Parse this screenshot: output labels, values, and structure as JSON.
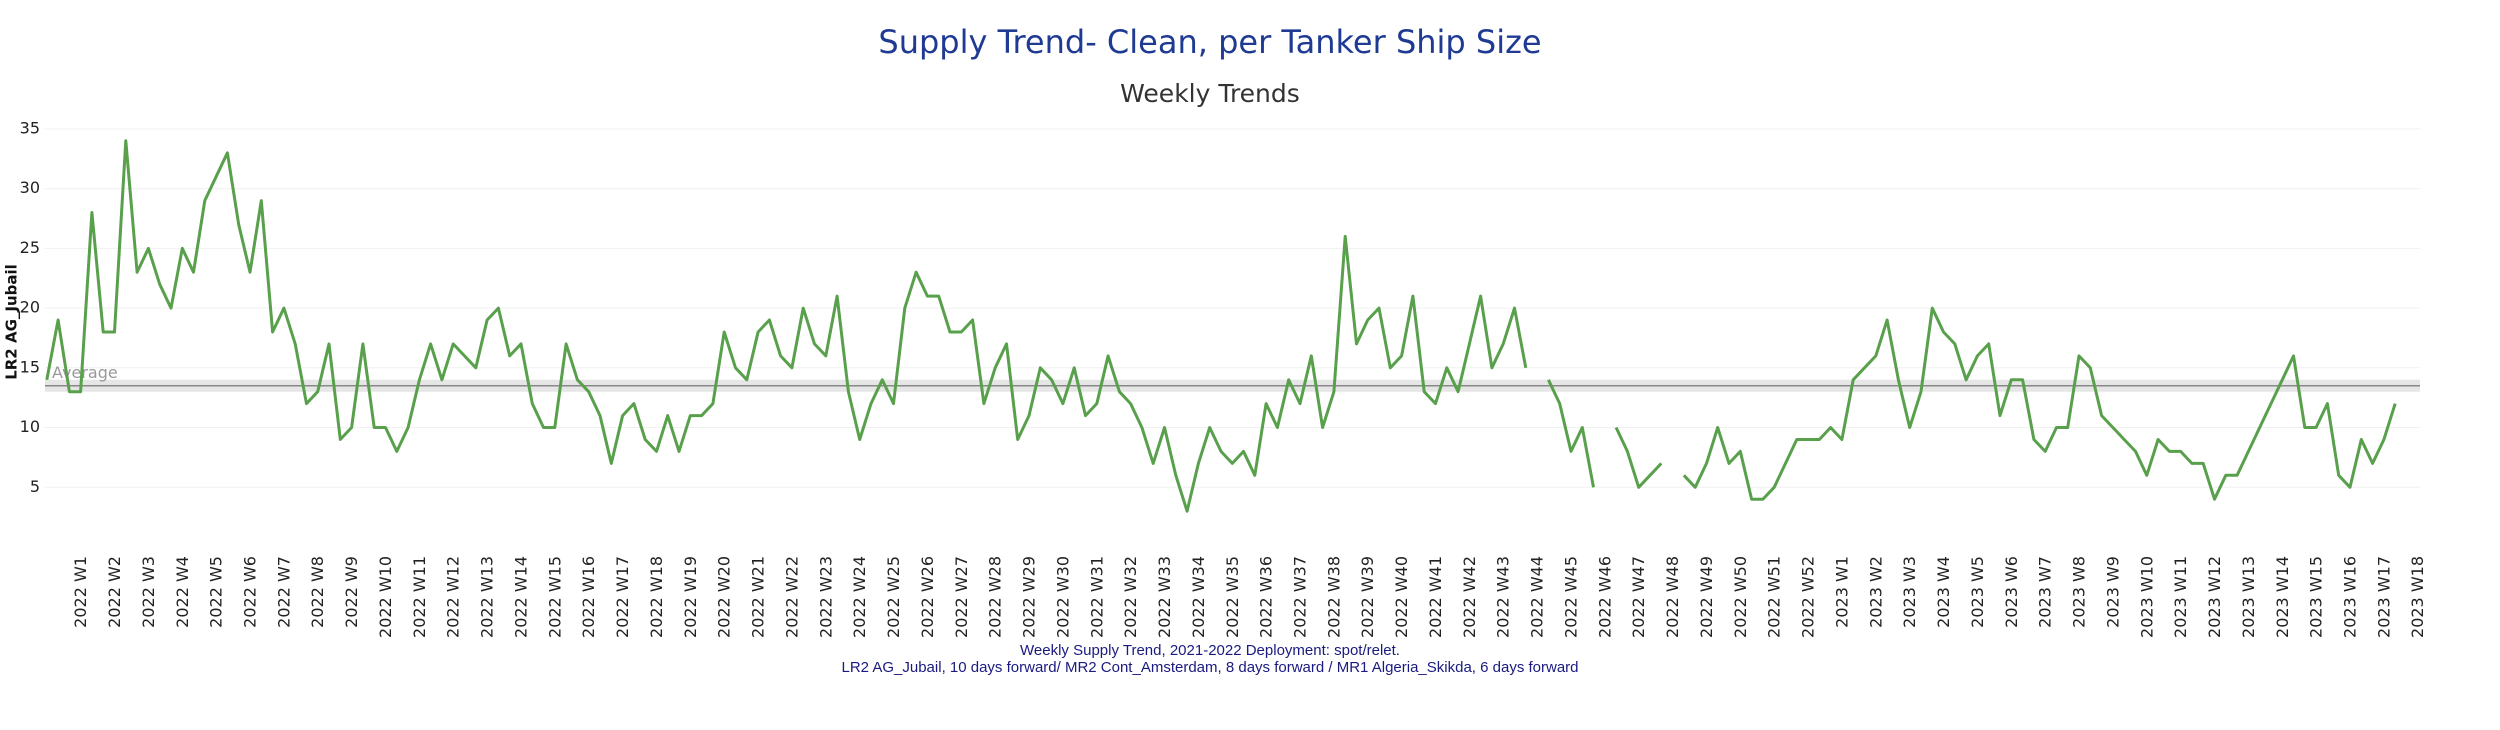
{
  "chart_data": {
    "type": "line",
    "title": "Supply Trend- Clean, per Tanker Ship Size",
    "subtitle": "Weekly Trends",
    "y_label": "LR2 AG_Jubail",
    "footnote": [
      "Weekly Supply Trend, 2021-2022 Deployment: spot/relet.",
      "LR2 AG_Jubail, 10 days forward/ MR2 Cont_Amsterdam, 8 days forward / MR1 Algeria_Skikda, 6 days forward"
    ],
    "average": {
      "label": "Average",
      "value": 13.5
    },
    "ylim": [
      0,
      37
    ],
    "yticks": [
      5,
      10,
      15,
      20,
      25,
      30,
      35
    ],
    "grid": true,
    "categories": [
      null,
      null,
      null,
      "2022 W1",
      null,
      null,
      "2022 W2",
      null,
      null,
      "2022 W3",
      null,
      null,
      "2022 W4",
      null,
      null,
      "2022 W5",
      null,
      null,
      "2022 W6",
      null,
      null,
      "2022 W7",
      null,
      null,
      "2022 W8",
      null,
      null,
      "2022 W9",
      null,
      null,
      "2022 W10",
      null,
      null,
      "2022 W11",
      null,
      null,
      "2022 W12",
      null,
      null,
      "2022 W13",
      null,
      null,
      "2022 W14",
      null,
      null,
      "2022 W15",
      null,
      null,
      "2022 W16",
      null,
      null,
      "2022 W17",
      null,
      null,
      "2022 W18",
      null,
      null,
      "2022 W19",
      null,
      null,
      "2022 W20",
      null,
      null,
      "2022 W21",
      null,
      null,
      "2022 W22",
      null,
      null,
      "2022 W23",
      null,
      null,
      "2022 W24",
      null,
      null,
      "2022 W25",
      null,
      null,
      "2022 W26",
      null,
      null,
      "2022 W27",
      null,
      null,
      "2022 W28",
      null,
      null,
      "2022 W29",
      null,
      null,
      "2022 W30",
      null,
      null,
      "2022 W31",
      null,
      null,
      "2022 W32",
      null,
      null,
      "2022 W33",
      null,
      null,
      "2022 W34",
      null,
      null,
      "2022 W35",
      null,
      null,
      "2022 W36",
      null,
      null,
      "2022 W37",
      null,
      null,
      "2022 W38",
      null,
      null,
      "2022 W39",
      null,
      null,
      "2022 W40",
      null,
      null,
      "2022 W41",
      null,
      null,
      "2022 W42",
      null,
      null,
      "2022 W43",
      null,
      null,
      "2022 W44",
      null,
      null,
      "2022 W45",
      null,
      null,
      "2022 W46",
      null,
      null,
      "2022 W47",
      null,
      null,
      "2022 W48",
      null,
      null,
      "2022 W49",
      null,
      null,
      "2022 W50",
      null,
      null,
      "2022 W51",
      null,
      null,
      "2022 W52",
      null,
      null,
      "2023 W1",
      null,
      null,
      "2023 W2",
      null,
      null,
      "2023 W3",
      null,
      null,
      "2023 W4",
      null,
      null,
      "2023 W5",
      null,
      null,
      "2023 W6",
      null,
      null,
      "2023 W7",
      null,
      null,
      "2023 W8",
      null,
      null,
      "2023 W9",
      null,
      null,
      "2023 W10",
      null,
      null,
      "2023 W11",
      null,
      null,
      "2023 W12",
      null,
      null,
      "2023 W13",
      null,
      null,
      "2023 W14",
      null,
      null,
      "2023 W15",
      null,
      null,
      "2023 W16",
      null,
      null,
      "2023 W17",
      null,
      null,
      "2023 W18"
    ],
    "series": [
      {
        "name": "LR2 AG_Jubail",
        "color": "#59a04c",
        "values": [
          14,
          19,
          13,
          13,
          28,
          18,
          18,
          34,
          23,
          25,
          22,
          20,
          25,
          23,
          29,
          31,
          33,
          27,
          23,
          29,
          18,
          20,
          17,
          12,
          13,
          17,
          9,
          10,
          17,
          10,
          10,
          8,
          10,
          14,
          17,
          14,
          17,
          16,
          15,
          19,
          20,
          16,
          17,
          12,
          10,
          10,
          17,
          14,
          13,
          11,
          7,
          11,
          12,
          9,
          8,
          11,
          8,
          11,
          11,
          12,
          18,
          15,
          14,
          18,
          19,
          16,
          15,
          20,
          17,
          16,
          21,
          13,
          9,
          12,
          14,
          12,
          20,
          23,
          21,
          21,
          18,
          18,
          19,
          12,
          15,
          17,
          9,
          11,
          15,
          14,
          12,
          15,
          11,
          12,
          16,
          13,
          12,
          10,
          7,
          10,
          6,
          3,
          7,
          10,
          8,
          7,
          8,
          6,
          12,
          10,
          14,
          12,
          16,
          10,
          13,
          26,
          17,
          19,
          20,
          15,
          16,
          21,
          13,
          12,
          15,
          13,
          17,
          21,
          15,
          17,
          20,
          15,
          null,
          14,
          12,
          8,
          10,
          5,
          null,
          10,
          8,
          5,
          6,
          7,
          null,
          6,
          5,
          7,
          10,
          7,
          8,
          4,
          4,
          5,
          7,
          9,
          9,
          9,
          10,
          9,
          14,
          15,
          16,
          19,
          14,
          10,
          13,
          20,
          18,
          17,
          14,
          16,
          17,
          11,
          14,
          14,
          9,
          8,
          10,
          10,
          16,
          15,
          11,
          10,
          9,
          8,
          6,
          9,
          8,
          8,
          7,
          7,
          4,
          6,
          6,
          8,
          10,
          12,
          14,
          16,
          10,
          10,
          12,
          6,
          5,
          9,
          7,
          9,
          12,
          null,
          null
        ]
      }
    ]
  }
}
